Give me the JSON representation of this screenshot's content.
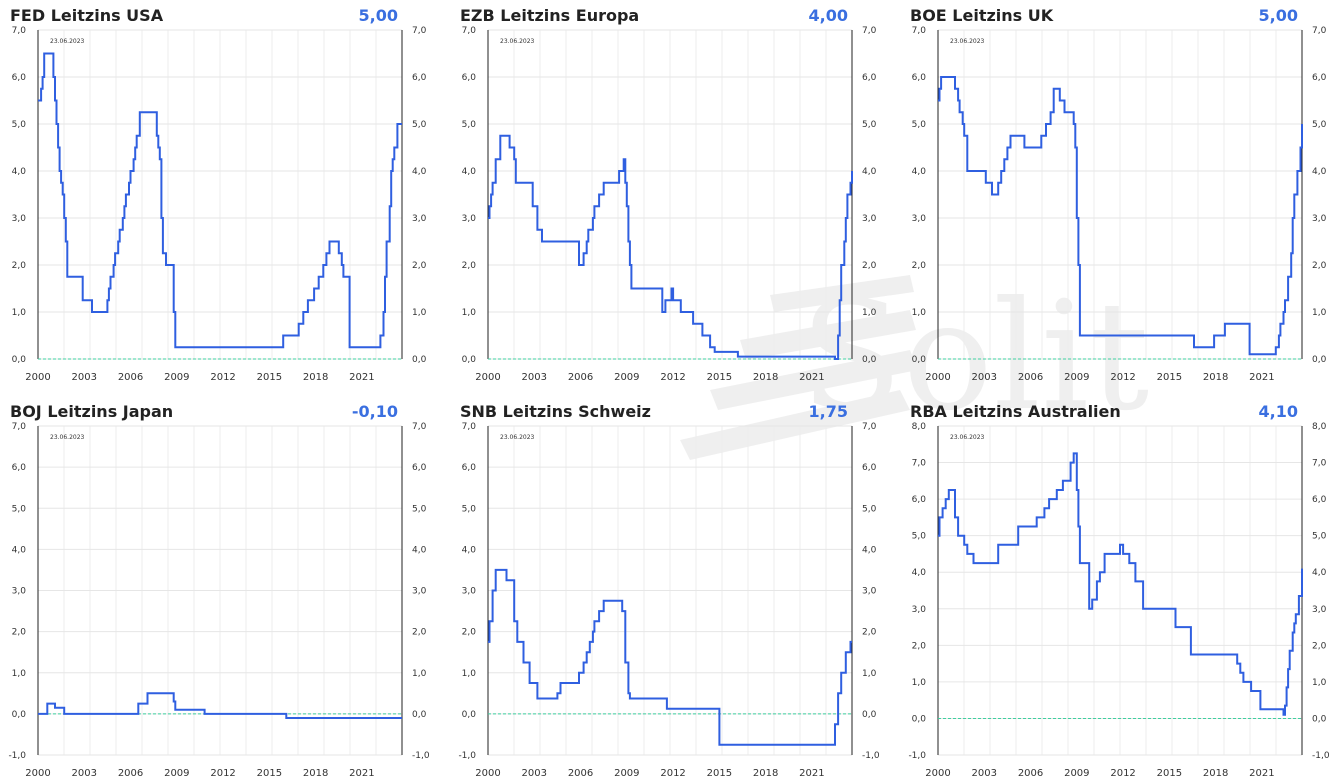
{
  "watermark": {
    "text": "Solit"
  },
  "chart_data": [
    {
      "type": "line",
      "title": "FED Leitzins USA",
      "current_value": "5,00",
      "date": "23.06.2023",
      "ylim": [
        0,
        7
      ],
      "yticks": [
        0,
        1,
        2,
        3,
        4,
        5,
        6,
        7
      ],
      "xlim": [
        2000,
        2023.6
      ],
      "xticks": [
        2000,
        2003,
        2006,
        2009,
        2012,
        2015,
        2018,
        2021
      ],
      "zero_line": true,
      "grid": true,
      "series": [
        {
          "x": [
            2000.0,
            2000.2,
            2000.3,
            2000.4,
            2001.0,
            2001.1,
            2001.2,
            2001.3,
            2001.4,
            2001.5,
            2001.6,
            2001.7,
            2001.8,
            2001.9,
            2002.9,
            2003.5,
            2004.5,
            2004.6,
            2004.7,
            2004.9,
            2005.0,
            2005.2,
            2005.3,
            2005.5,
            2005.6,
            2005.7,
            2005.9,
            2006.0,
            2006.2,
            2006.3,
            2006.4,
            2006.6,
            2007.7,
            2007.8,
            2007.9,
            2008.0,
            2008.1,
            2008.3,
            2008.8,
            2008.9,
            2015.9,
            2016.9,
            2017.2,
            2017.5,
            2017.9,
            2018.2,
            2018.5,
            2018.7,
            2018.9,
            2019.5,
            2019.7,
            2019.8,
            2020.2,
            2022.2,
            2022.4,
            2022.5,
            2022.6,
            2022.8,
            2022.9,
            2023.0,
            2023.1,
            2023.3,
            2023.6
          ],
          "y": [
            5.5,
            5.75,
            6.0,
            6.5,
            6.0,
            5.5,
            5.0,
            4.5,
            4.0,
            3.75,
            3.5,
            3.0,
            2.5,
            1.75,
            1.25,
            1.0,
            1.25,
            1.5,
            1.75,
            2.0,
            2.25,
            2.5,
            2.75,
            3.0,
            3.25,
            3.5,
            3.75,
            4.0,
            4.25,
            4.5,
            4.75,
            5.25,
            4.75,
            4.5,
            4.25,
            3.0,
            2.25,
            2.0,
            1.0,
            0.25,
            0.5,
            0.75,
            1.0,
            1.25,
            1.5,
            1.75,
            2.0,
            2.25,
            2.5,
            2.25,
            2.0,
            1.75,
            0.25,
            0.5,
            1.0,
            1.75,
            2.5,
            3.25,
            4.0,
            4.25,
            4.5,
            5.0,
            5.0
          ]
        }
      ]
    },
    {
      "type": "line",
      "title": "EZB Leitzins Europa",
      "current_value": "4,00",
      "date": "23.06.2023",
      "ylim": [
        0,
        7
      ],
      "yticks": [
        0,
        1,
        2,
        3,
        4,
        5,
        6,
        7
      ],
      "xlim": [
        2000,
        2023.6
      ],
      "xticks": [
        2000,
        2003,
        2006,
        2009,
        2012,
        2015,
        2018,
        2021
      ],
      "zero_line": true,
      "grid": true,
      "series": [
        {
          "x": [
            2000.0,
            2000.1,
            2000.2,
            2000.3,
            2000.5,
            2000.8,
            2001.4,
            2001.7,
            2001.8,
            2002.9,
            2003.2,
            2003.5,
            2005.9,
            2006.2,
            2006.4,
            2006.5,
            2006.8,
            2006.9,
            2007.2,
            2007.5,
            2008.5,
            2008.8,
            2008.9,
            2009.0,
            2009.1,
            2009.2,
            2009.3,
            2011.3,
            2011.5,
            2011.9,
            2012.0,
            2012.5,
            2013.3,
            2013.9,
            2014.4,
            2014.7,
            2016.2,
            2022.5,
            2022.7,
            2022.8,
            2022.9,
            2023.1,
            2023.2,
            2023.3,
            2023.5,
            2023.6
          ],
          "y": [
            3.0,
            3.25,
            3.5,
            3.75,
            4.25,
            4.75,
            4.5,
            4.25,
            3.75,
            3.25,
            2.75,
            2.5,
            2.0,
            2.25,
            2.5,
            2.75,
            3.0,
            3.25,
            3.5,
            3.75,
            4.0,
            4.25,
            3.75,
            3.25,
            2.5,
            2.0,
            1.5,
            1.0,
            1.25,
            1.5,
            1.25,
            1.0,
            0.75,
            0.5,
            0.25,
            0.15,
            0.05,
            0.0,
            0.5,
            1.25,
            2.0,
            2.5,
            3.0,
            3.5,
            3.75,
            4.0
          ]
        }
      ]
    },
    {
      "type": "line",
      "title": "BOE Leitzins UK",
      "current_value": "5,00",
      "date": "23.06.2023",
      "ylim": [
        0,
        7
      ],
      "yticks": [
        0,
        1,
        2,
        3,
        4,
        5,
        6,
        7
      ],
      "xlim": [
        2000,
        2023.6
      ],
      "xticks": [
        2000,
        2003,
        2006,
        2009,
        2012,
        2015,
        2018,
        2021
      ],
      "zero_line": true,
      "grid": true,
      "series": [
        {
          "x": [
            2000.0,
            2000.1,
            2000.2,
            2001.1,
            2001.3,
            2001.4,
            2001.6,
            2001.7,
            2001.9,
            2003.1,
            2003.5,
            2003.9,
            2004.1,
            2004.3,
            2004.5,
            2004.7,
            2005.6,
            2006.7,
            2007.0,
            2007.3,
            2007.5,
            2007.9,
            2008.2,
            2008.8,
            2008.9,
            2009.0,
            2009.1,
            2009.2,
            2016.6,
            2017.9,
            2018.6,
            2020.2,
            2021.9,
            2022.1,
            2022.2,
            2022.4,
            2022.5,
            2022.7,
            2022.9,
            2023.0,
            2023.1,
            2023.3,
            2023.5,
            2023.6
          ],
          "y": [
            5.5,
            5.75,
            6.0,
            5.75,
            5.5,
            5.25,
            5.0,
            4.75,
            4.0,
            3.75,
            3.5,
            3.75,
            4.0,
            4.25,
            4.5,
            4.75,
            4.5,
            4.75,
            5.0,
            5.25,
            5.75,
            5.5,
            5.25,
            5.0,
            4.5,
            3.0,
            2.0,
            0.5,
            0.25,
            0.5,
            0.75,
            0.1,
            0.25,
            0.5,
            0.75,
            1.0,
            1.25,
            1.75,
            2.25,
            3.0,
            3.5,
            4.0,
            4.5,
            5.0
          ]
        }
      ]
    },
    {
      "type": "line",
      "title": "BOJ Leitzins Japan",
      "current_value": "-0,10",
      "date": "23.06.2023",
      "ylim": [
        -1,
        7
      ],
      "yticks": [
        -1,
        0,
        1,
        2,
        3,
        4,
        5,
        6,
        7
      ],
      "xlim": [
        2000,
        2023.6
      ],
      "xticks": [
        2000,
        2003,
        2006,
        2009,
        2012,
        2015,
        2018,
        2021
      ],
      "zero_line": true,
      "grid": true,
      "series": [
        {
          "x": [
            2000.0,
            2000.6,
            2001.1,
            2001.7,
            2006.5,
            2007.1,
            2008.8,
            2008.9,
            2010.8,
            2016.1,
            2023.6
          ],
          "y": [
            0.0,
            0.25,
            0.15,
            0.0,
            0.25,
            0.5,
            0.3,
            0.1,
            0.0,
            -0.1,
            -0.1
          ]
        }
      ]
    },
    {
      "type": "line",
      "title": "SNB Leitzins Schweiz",
      "current_value": "1,75",
      "date": "23.06.2023",
      "ylim": [
        -1,
        7
      ],
      "yticks": [
        -1,
        0,
        1,
        2,
        3,
        4,
        5,
        6,
        7
      ],
      "xlim": [
        2000,
        2023.6
      ],
      "xticks": [
        2000,
        2003,
        2006,
        2009,
        2012,
        2015,
        2018,
        2021
      ],
      "zero_line": true,
      "grid": true,
      "series": [
        {
          "x": [
            2000.0,
            2000.1,
            2000.3,
            2000.5,
            2001.2,
            2001.7,
            2001.9,
            2002.3,
            2002.7,
            2003.2,
            2004.5,
            2004.7,
            2005.9,
            2006.2,
            2006.4,
            2006.6,
            2006.8,
            2006.9,
            2007.2,
            2007.5,
            2008.7,
            2008.9,
            2009.1,
            2009.2,
            2011.6,
            2015.0,
            2022.5,
            2022.7,
            2022.9,
            2023.2,
            2023.5,
            2023.6
          ],
          "y": [
            1.75,
            2.25,
            3.0,
            3.5,
            3.25,
            2.25,
            1.75,
            1.25,
            0.75,
            0.375,
            0.5,
            0.75,
            1.0,
            1.25,
            1.5,
            1.75,
            2.0,
            2.25,
            2.5,
            2.75,
            2.5,
            1.25,
            0.5,
            0.375,
            0.125,
            -0.75,
            -0.25,
            0.5,
            1.0,
            1.5,
            1.75,
            1.75
          ]
        }
      ]
    },
    {
      "type": "line",
      "title": "RBA Leitzins Australien",
      "current_value": "4,10",
      "date": "23.06.2023",
      "ylim": [
        -1,
        8
      ],
      "yticks": [
        -1,
        0,
        1,
        2,
        3,
        4,
        5,
        6,
        7,
        8
      ],
      "xlim": [
        2000,
        2023.6
      ],
      "xticks": [
        2000,
        2003,
        2006,
        2009,
        2012,
        2015,
        2018,
        2021
      ],
      "zero_line": true,
      "grid": true,
      "series": [
        {
          "x": [
            2000.0,
            2000.1,
            2000.3,
            2000.5,
            2000.7,
            2001.1,
            2001.3,
            2001.7,
            2001.9,
            2002.3,
            2003.9,
            2005.2,
            2006.4,
            2006.9,
            2007.2,
            2007.7,
            2008.1,
            2008.6,
            2008.8,
            2009.0,
            2009.1,
            2009.2,
            2009.8,
            2010.0,
            2010.3,
            2010.5,
            2010.8,
            2011.8,
            2012.0,
            2012.4,
            2012.8,
            2013.3,
            2015.4,
            2016.4,
            2019.4,
            2019.6,
            2019.8,
            2020.3,
            2020.9,
            2022.4,
            2022.5,
            2022.6,
            2022.7,
            2022.8,
            2023.0,
            2023.1,
            2023.2,
            2023.4,
            2023.6
          ],
          "y": [
            5.0,
            5.5,
            5.75,
            6.0,
            6.25,
            5.5,
            5.0,
            4.75,
            4.5,
            4.25,
            4.75,
            5.25,
            5.5,
            5.75,
            6.0,
            6.25,
            6.5,
            7.0,
            7.25,
            6.25,
            5.25,
            4.25,
            3.0,
            3.25,
            3.75,
            4.0,
            4.5,
            4.75,
            4.5,
            4.25,
            3.75,
            3.0,
            2.5,
            1.75,
            1.5,
            1.25,
            1.0,
            0.75,
            0.25,
            0.1,
            0.35,
            0.85,
            1.35,
            1.85,
            2.35,
            2.6,
            2.85,
            3.35,
            4.1
          ]
        }
      ]
    }
  ]
}
